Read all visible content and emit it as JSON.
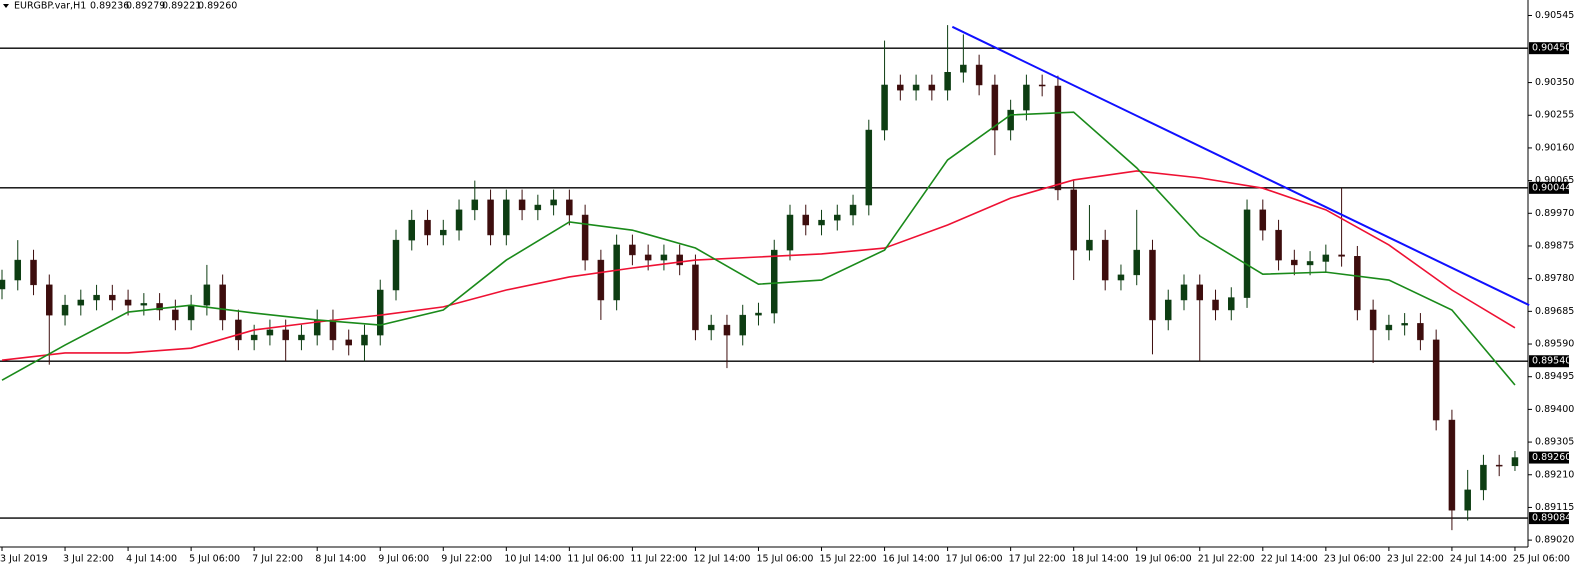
{
  "chart_data": {
    "type": "candlestick",
    "title": "EURGBP.var,H1",
    "header_values": [
      "0.89236",
      "0.89279",
      "0.89221",
      "0.89260"
    ],
    "categories": [
      "3 Jul 2019",
      null,
      null,
      null,
      "3 Jul 22:00",
      null,
      null,
      null,
      "4 Jul 14:00",
      null,
      null,
      null,
      "5 Jul 06:00",
      null,
      null,
      null,
      "7 Jul 22:00",
      null,
      null,
      null,
      "8 Jul 14:00",
      null,
      null,
      null,
      "9 Jul 06:00",
      null,
      null,
      null,
      "9 Jul 22:00",
      null,
      null,
      null,
      "10 Jul 14:00",
      null,
      null,
      null,
      "11 Jul 06:00",
      null,
      null,
      null,
      "11 Jul 22:00",
      null,
      null,
      null,
      "12 Jul 14:00",
      null,
      null,
      null,
      "15 Jul 06:00",
      null,
      null,
      null,
      "15 Jul 22:00",
      null,
      null,
      null,
      "16 Jul 14:00",
      null,
      null,
      null,
      "17 Jul 06:00",
      null,
      null,
      null,
      "17 Jul 22:00",
      null,
      null,
      null,
      "18 Jul 14:00",
      null,
      null,
      null,
      "19 Jul 06:00",
      null,
      null,
      null,
      "21 Jul 22:00",
      null,
      null,
      null,
      "22 Jul 14:00",
      null,
      null,
      null,
      "23 Jul 06:00",
      null,
      null,
      null,
      "23 Jul 22:00",
      null,
      null,
      null,
      "24 Jul 14:00",
      null,
      null,
      null,
      "25 Jul 06:00"
    ],
    "open": [
      0.8975,
      0.89776,
      0.89834,
      0.89762,
      0.89674,
      0.89703,
      0.89718,
      0.89732,
      0.89718,
      0.89703,
      0.89708,
      0.89689,
      0.8966,
      0.89703,
      0.89762,
      0.8966,
      0.89602,
      0.89616,
      0.89631,
      0.89602,
      0.89616,
      0.8966,
      0.89602,
      0.89587,
      0.89616,
      0.89747,
      0.89892,
      0.8995,
      0.89907,
      0.89921,
      0.8998,
      0.90009,
      0.89907,
      0.90009,
      0.8998,
      0.89994,
      0.90009,
      0.89965,
      0.89834,
      0.89718,
      0.89878,
      0.89849,
      0.89834,
      0.89849,
      0.8982,
      0.89631,
      0.89645,
      0.89616,
      0.89674,
      0.8968,
      0.89863,
      0.89965,
      0.89936,
      0.8995,
      0.89965,
      0.89994,
      0.90212,
      0.90343,
      0.90328,
      0.90343,
      0.90328,
      0.9038,
      0.90401,
      0.90343,
      0.90212,
      0.9027,
      0.90343,
      0.9034,
      0.90038,
      0.89863,
      0.89892,
      0.89776,
      0.89791,
      0.89863,
      0.8966,
      0.89718,
      0.89762,
      0.89718,
      0.89689,
      0.89725,
      0.8998,
      0.89921,
      0.89834,
      0.8982,
      0.8983,
      0.89849,
      0.89845,
      0.89689,
      0.89631,
      0.89645,
      0.8965,
      0.89602,
      0.89369,
      0.89107,
      0.89166,
      0.89238,
      0.89236
    ],
    "high": [
      0.89806,
      0.89892,
      0.89864,
      0.89792,
      0.89733,
      0.89748,
      0.89762,
      0.89762,
      0.89748,
      0.89738,
      0.89738,
      0.89719,
      0.89733,
      0.8982,
      0.89792,
      0.8969,
      0.89646,
      0.89661,
      0.89661,
      0.89646,
      0.8969,
      0.8969,
      0.89632,
      0.89646,
      0.89777,
      0.89922,
      0.8998,
      0.8998,
      0.89951,
      0.9001,
      0.90065,
      0.90039,
      0.90039,
      0.90039,
      0.90024,
      0.90039,
      0.90039,
      0.89995,
      0.89864,
      0.89908,
      0.89908,
      0.89879,
      0.89879,
      0.89879,
      0.8985,
      0.89675,
      0.89675,
      0.89704,
      0.8971,
      0.89893,
      0.89995,
      0.89995,
      0.8998,
      0.89995,
      0.90024,
      0.90242,
      0.90472,
      0.90373,
      0.90373,
      0.90373,
      0.90517,
      0.9049,
      0.90431,
      0.90373,
      0.903,
      0.90373,
      0.90373,
      0.9037,
      0.90068,
      0.89994,
      0.89922,
      0.89821,
      0.8998,
      0.89893,
      0.89748,
      0.89792,
      0.89792,
      0.89748,
      0.89755,
      0.9001,
      0.9001,
      0.89951,
      0.89864,
      0.8986,
      0.89879,
      0.90044,
      0.89875,
      0.89719,
      0.89675,
      0.8968,
      0.8968,
      0.89632,
      0.89399,
      0.89224,
      0.89268,
      0.89268,
      0.89279
    ],
    "low": [
      0.8972,
      0.89746,
      0.89732,
      0.8953,
      0.89644,
      0.89673,
      0.89688,
      0.89688,
      0.89673,
      0.89673,
      0.89659,
      0.8963,
      0.8963,
      0.89673,
      0.8963,
      0.89572,
      0.89572,
      0.89586,
      0.8954,
      0.89572,
      0.89586,
      0.89572,
      0.89557,
      0.8954,
      0.89586,
      0.89717,
      0.89862,
      0.89877,
      0.89877,
      0.89891,
      0.8995,
      0.89877,
      0.89877,
      0.8995,
      0.8995,
      0.89964,
      0.89935,
      0.89804,
      0.8966,
      0.89688,
      0.89819,
      0.89804,
      0.89804,
      0.8979,
      0.89601,
      0.89601,
      0.8952,
      0.89586,
      0.89644,
      0.8965,
      0.89833,
      0.89906,
      0.89906,
      0.8992,
      0.89935,
      0.89964,
      0.90182,
      0.90298,
      0.90298,
      0.90298,
      0.90298,
      0.9035,
      0.90313,
      0.90139,
      0.90182,
      0.9024,
      0.9031,
      0.90008,
      0.89776,
      0.89833,
      0.89746,
      0.89746,
      0.89761,
      0.8956,
      0.8963,
      0.89688,
      0.8954,
      0.89659,
      0.89659,
      0.89695,
      0.89891,
      0.89804,
      0.8979,
      0.8979,
      0.898,
      0.89815,
      0.89659,
      0.89535,
      0.89601,
      0.89615,
      0.89572,
      0.89339,
      0.89049,
      0.89077,
      0.89136,
      0.89206,
      0.89221
    ],
    "close": [
      0.89776,
      0.89834,
      0.89762,
      0.89674,
      0.89703,
      0.89718,
      0.89732,
      0.89718,
      0.89703,
      0.89708,
      0.89689,
      0.8966,
      0.89703,
      0.89762,
      0.8966,
      0.89602,
      0.89616,
      0.89631,
      0.89602,
      0.89616,
      0.8966,
      0.89602,
      0.89587,
      0.89616,
      0.89747,
      0.89892,
      0.8995,
      0.89907,
      0.89921,
      0.8998,
      0.90009,
      0.89907,
      0.90009,
      0.8998,
      0.89994,
      0.90009,
      0.89965,
      0.89834,
      0.89718,
      0.89878,
      0.89849,
      0.89834,
      0.89849,
      0.8982,
      0.89631,
      0.89645,
      0.89616,
      0.89674,
      0.8968,
      0.89863,
      0.89965,
      0.89936,
      0.8995,
      0.89965,
      0.89994,
      0.90212,
      0.90343,
      0.90328,
      0.90343,
      0.90328,
      0.9038,
      0.90401,
      0.90343,
      0.90212,
      0.9027,
      0.90343,
      0.9034,
      0.90038,
      0.89863,
      0.89892,
      0.89776,
      0.89791,
      0.89863,
      0.8966,
      0.89718,
      0.89762,
      0.89718,
      0.89689,
      0.89725,
      0.8998,
      0.89921,
      0.89834,
      0.8982,
      0.8983,
      0.89849,
      0.89845,
      0.89689,
      0.89631,
      0.89645,
      0.8965,
      0.89602,
      0.89369,
      0.89107,
      0.89166,
      0.89238,
      0.89236,
      0.8926
    ],
    "up_color": "#0d3d12",
    "down_color": "#3d0d0d",
    "moving_averages": [
      {
        "color": "#ee1133",
        "x": [
          0,
          4,
          8,
          12,
          16,
          20,
          24,
          28,
          32,
          36,
          40,
          44,
          48,
          52,
          56,
          60,
          64,
          68,
          72,
          76,
          80,
          84,
          88,
          92,
          96
        ],
        "values": [
          0.89543,
          0.89564,
          0.89564,
          0.89578,
          0.89631,
          0.89654,
          0.89674,
          0.89698,
          0.89747,
          0.89785,
          0.89811,
          0.89834,
          0.89843,
          0.89852,
          0.89869,
          0.89936,
          0.90014,
          0.90067,
          0.90093,
          0.90073,
          0.90043,
          0.8998,
          0.89878,
          0.89747,
          0.89637
        ]
      },
      {
        "color": "#1a8a1a",
        "x": [
          0,
          4,
          8,
          12,
          16,
          20,
          24,
          28,
          32,
          36,
          40,
          44,
          48,
          52,
          56,
          60,
          64,
          68,
          72,
          76,
          80,
          84,
          88,
          92,
          96
        ],
        "values": [
          0.89485,
          0.89587,
          0.89683,
          0.89703,
          0.8968,
          0.8966,
          0.89645,
          0.89689,
          0.89834,
          0.89945,
          0.89921,
          0.89869,
          0.89764,
          0.89776,
          0.89863,
          0.90125,
          0.90256,
          0.90264,
          0.90102,
          0.89904,
          0.89793,
          0.89799,
          0.89776,
          0.89689,
          0.89471
        ]
      }
    ],
    "trend_line": {
      "color": "#1010ff",
      "x": [
        60.3,
        96.9
      ],
      "values": [
        0.90512,
        0.89703
      ]
    },
    "levels": [
      {
        "value": 0.9045,
        "label": "0.90450"
      },
      0.90044,
      {
        "value": 0.8954,
        "label": "0.89540"
      },
      0.89084
    ],
    "current_price": {
      "value": 0.8926,
      "label": "0.89260"
    },
    "ylim": [
      0.89,
      0.9059
    ],
    "yticks": [
      0.90545,
      {
        "value": 0.9035,
        "label": "0.90350"
      },
      0.90255,
      {
        "value": 0.9016,
        "label": "0.90160"
      },
      0.90065,
      {
        "value": 0.8997,
        "label": "0.89970"
      },
      0.89875,
      {
        "value": 0.8978,
        "label": "0.89780"
      },
      0.89685,
      {
        "value": 0.8959,
        "label": "0.89590"
      },
      0.89495,
      {
        "value": 0.894,
        "label": "0.89400"
      },
      0.89305,
      {
        "value": 0.8921,
        "label": "0.89210"
      },
      0.89115,
      {
        "value": 0.8902,
        "label": "0.89020"
      }
    ]
  }
}
